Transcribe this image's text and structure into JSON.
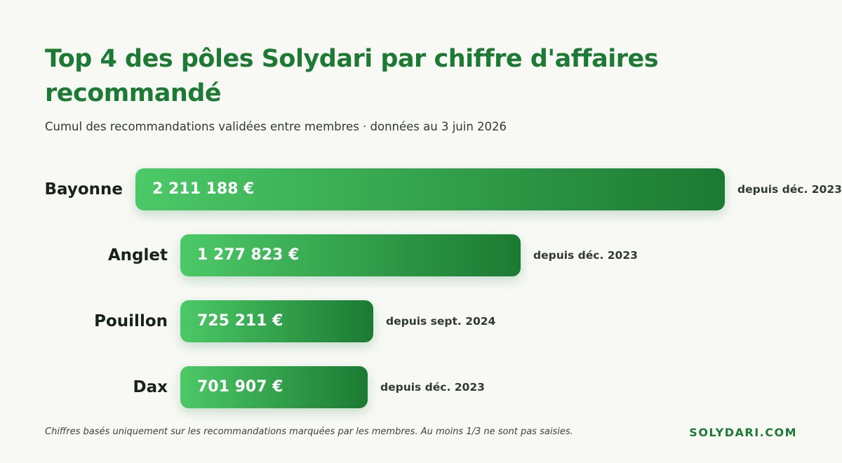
{
  "header": {
    "title": "Top 4 des pôles Solydari par chiffre d'affaires recommandé",
    "subtitle": "Cumul des recommandations validées entre membres · données au 3 juin 2026"
  },
  "chart_data": {
    "type": "bar",
    "orientation": "horizontal",
    "categories": [
      "Bayonne",
      "Anglet",
      "Pouillon",
      "Dax"
    ],
    "values": [
      2211188,
      1277823,
      725211,
      701907
    ],
    "value_labels": [
      "2 211 188 €",
      "1 277 823 €",
      "725 211 €",
      "701 907 €"
    ],
    "notes": [
      "depuis déc. 2023",
      "depuis déc. 2023",
      "depuis sept. 2024",
      "depuis déc. 2023"
    ],
    "unit": "€",
    "bar_gradient": [
      "#4cc967",
      "#1b7a32"
    ],
    "title": "Top 4 des pôles Solydari par chiffre d'affaires recommandé",
    "xlabel": "",
    "ylabel": ""
  },
  "footer": {
    "note": "Chiffres basés uniquement sur les recommandations marquées par les membres. Au moins 1/3 ne sont pas saisies.",
    "brand": "SOLYDARI.COM"
  }
}
